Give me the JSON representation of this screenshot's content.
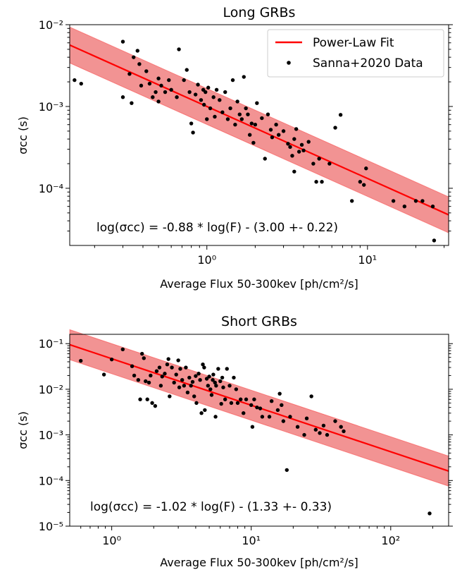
{
  "chart_data": [
    {
      "type": "scatter",
      "title": "Long GRBs",
      "xlabel": "Average Flux 50-300kev [ph/cm²/s]",
      "ylabel": "σcc (s)",
      "xscale": "log",
      "yscale": "log",
      "xlim": [
        0.14,
        32
      ],
      "ylim": [
        2e-05,
        0.01
      ],
      "x_ticks": [
        {
          "value": 1,
          "label": "10⁰"
        },
        {
          "value": 10,
          "label": "10¹"
        }
      ],
      "y_ticks": [
        {
          "value": 0.0001,
          "label": "10⁻⁴"
        },
        {
          "value": 0.001,
          "label": "10⁻³"
        },
        {
          "value": 0.01,
          "label": "10⁻²"
        }
      ],
      "legend": {
        "placement": "top-right",
        "entries": [
          "Power-Law Fit",
          "Sanna+2020 Data"
        ]
      },
      "annotation": "log(σcc) = -0.88 * log(F) - (3.00 +- 0.22)",
      "fit": {
        "slope": -0.88,
        "intercept": -3.0,
        "scatter": 0.22,
        "line_color": "#ff0000",
        "band_color": "#f08080"
      },
      "series": [
        {
          "name": "Sanna+2020 Data",
          "color": "#000000",
          "points": [
            [
              0.15,
              0.0021
            ],
            [
              0.165,
              0.0019
            ],
            [
              0.3,
              0.0062
            ],
            [
              0.3,
              0.0013
            ],
            [
              0.33,
              0.0025
            ],
            [
              0.34,
              0.0011
            ],
            [
              0.35,
              0.004
            ],
            [
              0.37,
              0.0048
            ],
            [
              0.38,
              0.0033
            ],
            [
              0.39,
              0.0018
            ],
            [
              0.42,
              0.0027
            ],
            [
              0.44,
              0.0019
            ],
            [
              0.46,
              0.0013
            ],
            [
              0.48,
              0.0015
            ],
            [
              0.5,
              0.0022
            ],
            [
              0.5,
              0.00115
            ],
            [
              0.52,
              0.0018
            ],
            [
              0.55,
              0.0015
            ],
            [
              0.58,
              0.0021
            ],
            [
              0.6,
              0.0016
            ],
            [
              0.65,
              0.0013
            ],
            [
              0.67,
              0.005
            ],
            [
              0.72,
              0.0021
            ],
            [
              0.75,
              0.0028
            ],
            [
              0.78,
              0.0015
            ],
            [
              0.8,
              0.00062
            ],
            [
              0.82,
              0.00048
            ],
            [
              0.85,
              0.0014
            ],
            [
              0.88,
              0.00185
            ],
            [
              0.92,
              0.0012
            ],
            [
              0.95,
              0.0016
            ],
            [
              0.96,
              0.00105
            ],
            [
              0.98,
              0.0015
            ],
            [
              1.0,
              0.0007
            ],
            [
              1.02,
              0.0017
            ],
            [
              1.05,
              0.00095
            ],
            [
              1.1,
              0.0013
            ],
            [
              1.12,
              0.00075
            ],
            [
              1.15,
              0.0016
            ],
            [
              1.2,
              0.0012
            ],
            [
              1.25,
              0.00085
            ],
            [
              1.3,
              0.0015
            ],
            [
              1.35,
              0.0007
            ],
            [
              1.4,
              0.00095
            ],
            [
              1.45,
              0.0021
            ],
            [
              1.5,
              0.0006
            ],
            [
              1.55,
              0.00115
            ],
            [
              1.6,
              0.0008
            ],
            [
              1.65,
              0.0007
            ],
            [
              1.7,
              0.0023
            ],
            [
              1.75,
              0.00095
            ],
            [
              1.8,
              0.0008
            ],
            [
              1.85,
              0.00045
            ],
            [
              1.9,
              0.00062
            ],
            [
              1.95,
              0.00036
            ],
            [
              2.0,
              0.0006
            ],
            [
              2.05,
              0.0011
            ],
            [
              2.2,
              0.00072
            ],
            [
              2.3,
              0.00023
            ],
            [
              2.4,
              0.0008
            ],
            [
              2.5,
              0.00052
            ],
            [
              2.55,
              0.00042
            ],
            [
              2.7,
              0.0006
            ],
            [
              2.8,
              0.00045
            ],
            [
              3.0,
              0.0005
            ],
            [
              3.2,
              0.00035
            ],
            [
              3.3,
              0.00032
            ],
            [
              3.4,
              0.00025
            ],
            [
              3.5,
              0.0004
            ],
            [
              3.5,
              0.00016
            ],
            [
              3.6,
              0.00053
            ],
            [
              3.75,
              0.00028
            ],
            [
              3.9,
              0.00034
            ],
            [
              4.0,
              0.00029
            ],
            [
              4.3,
              0.00037
            ],
            [
              4.6,
              0.0002
            ],
            [
              4.8,
              0.00012
            ],
            [
              5.0,
              0.00023
            ],
            [
              5.2,
              0.00012
            ],
            [
              5.8,
              0.0002
            ],
            [
              6.3,
              0.00055
            ],
            [
              6.8,
              0.00079
            ],
            [
              8.0,
              7e-05
            ],
            [
              9.0,
              0.00012
            ],
            [
              9.5,
              0.00011
            ],
            [
              9.8,
              0.000175
            ],
            [
              14.5,
              7e-05
            ],
            [
              17.0,
              6e-05
            ],
            [
              20.0,
              7e-05
            ],
            [
              22.0,
              7e-05
            ],
            [
              25.5,
              6e-05
            ],
            [
              26.0,
              2.3e-05
            ]
          ]
        }
      ]
    },
    {
      "type": "scatter",
      "title": "Short GRBs",
      "xlabel": "Average Flux 50-300kev [ph/cm²/s]",
      "ylabel": "σcc (s)",
      "xscale": "log",
      "yscale": "log",
      "xlim": [
        0.5,
        260
      ],
      "ylim": [
        1e-05,
        0.16
      ],
      "x_ticks": [
        {
          "value": 1,
          "label": "10⁰"
        },
        {
          "value": 10,
          "label": "10¹"
        },
        {
          "value": 100,
          "label": "10²"
        }
      ],
      "y_ticks": [
        {
          "value": 1e-05,
          "label": "10⁻⁵"
        },
        {
          "value": 0.0001,
          "label": "10⁻⁴"
        },
        {
          "value": 0.001,
          "label": "10⁻³"
        },
        {
          "value": 0.01,
          "label": "10⁻²"
        },
        {
          "value": 0.1,
          "label": "10⁻¹"
        }
      ],
      "annotation": "log(σcc) = -1.02 * log(F) - (1.33 +- 0.33)",
      "fit": {
        "slope": -1.02,
        "intercept": -1.33,
        "scatter": 0.33,
        "line_color": "#ff0000",
        "band_color": "#f08080"
      },
      "series": [
        {
          "name": "",
          "color": "#000000",
          "points": [
            [
              0.6,
              0.042
            ],
            [
              0.88,
              0.021
            ],
            [
              1.0,
              0.045
            ],
            [
              1.2,
              0.075
            ],
            [
              1.4,
              0.032
            ],
            [
              1.45,
              0.02
            ],
            [
              1.55,
              0.016
            ],
            [
              1.6,
              0.006
            ],
            [
              1.65,
              0.06
            ],
            [
              1.7,
              0.048
            ],
            [
              1.75,
              0.015
            ],
            [
              1.8,
              0.006
            ],
            [
              1.85,
              0.014
            ],
            [
              1.9,
              0.02
            ],
            [
              1.95,
              0.005
            ],
            [
              2.05,
              0.0043
            ],
            [
              2.1,
              0.025
            ],
            [
              2.2,
              0.03
            ],
            [
              2.25,
              0.012
            ],
            [
              2.3,
              0.019
            ],
            [
              2.4,
              0.022
            ],
            [
              2.5,
              0.035
            ],
            [
              2.55,
              0.046
            ],
            [
              2.6,
              0.007
            ],
            [
              2.7,
              0.03
            ],
            [
              2.8,
              0.014
            ],
            [
              2.9,
              0.021
            ],
            [
              3.0,
              0.043
            ],
            [
              3.05,
              0.011
            ],
            [
              3.1,
              0.028
            ],
            [
              3.2,
              0.016
            ],
            [
              3.3,
              0.012
            ],
            [
              3.4,
              0.03
            ],
            [
              3.5,
              0.0085
            ],
            [
              3.6,
              0.018
            ],
            [
              3.7,
              0.012
            ],
            [
              3.8,
              0.0145
            ],
            [
              3.9,
              0.007
            ],
            [
              4.0,
              0.0195
            ],
            [
              4.05,
              0.005
            ],
            [
              4.2,
              0.022
            ],
            [
              4.3,
              0.016
            ],
            [
              4.4,
              0.003
            ],
            [
              4.5,
              0.035
            ],
            [
              4.6,
              0.03
            ],
            [
              4.65,
              0.0035
            ],
            [
              4.8,
              0.017
            ],
            [
              4.9,
              0.012
            ],
            [
              5.0,
              0.019
            ],
            [
              5.1,
              0.01
            ],
            [
              5.2,
              0.0075
            ],
            [
              5.3,
              0.016
            ],
            [
              5.35,
              0.021
            ],
            [
              5.5,
              0.014
            ],
            [
              5.55,
              0.0025
            ],
            [
              5.6,
              0.012
            ],
            [
              5.8,
              0.028
            ],
            [
              6.0,
              0.015
            ],
            [
              6.1,
              0.0048
            ],
            [
              6.2,
              0.018
            ],
            [
              6.3,
              0.011
            ],
            [
              6.5,
              0.006
            ],
            [
              6.7,
              0.028
            ],
            [
              7.0,
              0.012
            ],
            [
              7.2,
              0.005
            ],
            [
              7.5,
              0.018
            ],
            [
              7.8,
              0.01
            ],
            [
              8.0,
              0.005
            ],
            [
              8.4,
              0.006
            ],
            [
              8.8,
              0.003
            ],
            [
              9.2,
              0.006
            ],
            [
              10.0,
              0.0045
            ],
            [
              10.2,
              0.0015
            ],
            [
              10.5,
              0.006
            ],
            [
              11.0,
              0.004
            ],
            [
              11.6,
              0.0038
            ],
            [
              12.0,
              0.0025
            ],
            [
              13.5,
              0.0025
            ],
            [
              14.0,
              0.0055
            ],
            [
              15.5,
              0.0035
            ],
            [
              16.0,
              0.008
            ],
            [
              16.5,
              0.0045
            ],
            [
              17.0,
              0.002
            ],
            [
              18.0,
              0.00017
            ],
            [
              19.0,
              0.0025
            ],
            [
              21.5,
              0.0015
            ],
            [
              24.0,
              0.001
            ],
            [
              25.0,
              0.0023
            ],
            [
              27.0,
              0.007
            ],
            [
              29.0,
              0.0013
            ],
            [
              31.0,
              0.0011
            ],
            [
              33.0,
              0.0016
            ],
            [
              35.0,
              0.001
            ],
            [
              40.0,
              0.002
            ],
            [
              44.0,
              0.0015
            ],
            [
              46.0,
              0.0012
            ],
            [
              190.0,
              1.9e-05
            ]
          ]
        }
      ]
    }
  ]
}
